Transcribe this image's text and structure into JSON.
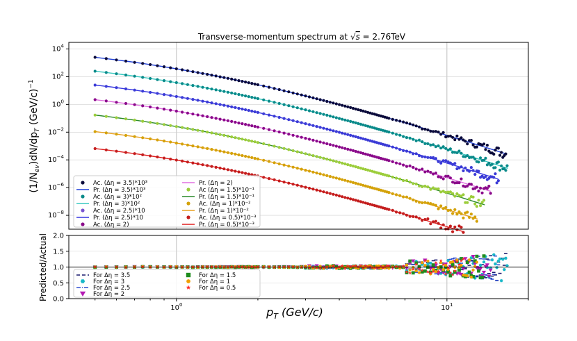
{
  "chart_data": {
    "type": "scatter",
    "title": "Transverse-momentum spectrum at √s = 2.76TeV",
    "title_main": "Transverse-momentum spectrum at ",
    "title_sqrt": "√",
    "title_s": "s",
    "title_rest": " =  2.76TeV",
    "xlabel": "p_T (GeV/c)",
    "xlabel_p": "p",
    "xlabel_sub": "T",
    "xlabel_units": " (GeV/c)",
    "x_scale": "log",
    "xlim": [
      0.4,
      20
    ],
    "x_ticks": [
      {
        "base": "10",
        "exp": "0",
        "value": 1
      },
      {
        "base": "10",
        "exp": "1",
        "value": 10
      }
    ],
    "grid": true,
    "top_panel": {
      "ylabel": "(1/N_ev)dN/dp_T (GeV/c)^-1",
      "ylabel_a": "(1/N",
      "ylabel_a_sub": "ev",
      "ylabel_b": ")dN/dp",
      "ylabel_b_sub": "T",
      "ylabel_c": " (GeV/c)",
      "ylabel_c_sup": "−1",
      "y_scale": "log",
      "ylim": [
        1e-09,
        30000.0
      ],
      "y_ticks": [
        {
          "base": "10",
          "exp": "4",
          "value": 10000
        },
        {
          "base": "10",
          "exp": "2",
          "value": 100
        },
        {
          "base": "10",
          "exp": "0",
          "value": 1
        },
        {
          "base": "10",
          "exp": "−2",
          "value": 0.01
        },
        {
          "base": "10",
          "exp": "−4",
          "value": 0.0001
        },
        {
          "base": "10",
          "exp": "−6",
          "value": 1e-06
        },
        {
          "base": "10",
          "exp": "−8",
          "value": 1e-08
        }
      ],
      "legend_position": "lower-left",
      "series": [
        {
          "key": "35",
          "start": 2500,
          "color": "#0b0b3b",
          "xmax": 16.5,
          "data_label": "Ac. (Δη = 3.5)*10³",
          "fit_label": "Pr. (Δη = 3.5)*10³",
          "fit_color": "#1f3fd8"
        },
        {
          "key": "30",
          "start": 250,
          "color": "#0a8a8a",
          "xmax": 16.8,
          "data_label": "Ac. (Δη = 3)*10²",
          "fit_label": "Pr. (Δη = 3)*10²",
          "fit_color": "#38c8c0"
        },
        {
          "key": "25",
          "start": 25,
          "color": "#3b3bd6",
          "xmax": 15.5,
          "data_label": "Ac. (Δη = 2.5)*10",
          "fit_label": "Pr. (Δη = 2.5)*10",
          "fit_color": "#3636e0"
        },
        {
          "key": "20",
          "start": 2.2,
          "color": "#8a0a8a",
          "xmax": 14.5,
          "data_label": "Ac. (Δη = 2)",
          "fit_label": "Pr. (Δη = 2)",
          "fit_color": "#e070e0"
        },
        {
          "key": "15",
          "start": 0.17,
          "color": "#9ccd3b",
          "xmax": 13.8,
          "data_label": "Ac (Δη = 1.5)*10⁻¹",
          "fit_label": "Pr. (Δη = 1.5)*10⁻¹",
          "fit_color": "#2a8a2a"
        },
        {
          "key": "10",
          "start": 0.011,
          "color": "#d4a20a",
          "xmax": 13.0,
          "data_label": "Ac. (Δη = 1)*10⁻²",
          "fit_label": "Pr. (Δη = 1)*10⁻²",
          "fit_color": "#e8a020"
        },
        {
          "key": "05",
          "start": 0.00065,
          "color": "#c41e1e",
          "xmax": 11.5,
          "data_label": "Ac. (Δη = 0.5)*10⁻³",
          "fit_label": "Pr. (Δη = 0.5)*10⁻³",
          "fit_color": "#e02020"
        }
      ],
      "legend_left": [
        {
          "kind": "dot",
          "color": "#0b0b3b",
          "label": "Ac. (Δη = 3.5)*10³"
        },
        {
          "kind": "line",
          "color": "#1f3fd8",
          "label": "Pr. (Δη = 3.5)*10³"
        },
        {
          "kind": "dot",
          "color": "#0a8a8a",
          "label": "Ac. (Δη = 3)*10²"
        },
        {
          "kind": "line",
          "color": "#38c8c0",
          "label": "Pr. (Δη = 3)*10²"
        },
        {
          "kind": "dot",
          "color": "#7a55d0",
          "label": "Ac. (Δη = 2.5)*10"
        },
        {
          "kind": "line",
          "color": "#3636e0",
          "label": "Pr. (Δη = 2.5)*10"
        },
        {
          "kind": "dot",
          "color": "#8a0a8a",
          "label": "Ac. (Δη = 2)"
        }
      ],
      "legend_right": [
        {
          "kind": "line",
          "color": "#e070e0",
          "label": "Pr. (Δη = 2)"
        },
        {
          "kind": "dot",
          "color": "#9ccd3b",
          "label": "Ac (Δη = 1.5)*10⁻¹"
        },
        {
          "kind": "line",
          "color": "#2a8a2a",
          "label": "Pr. (Δη = 1.5)*10⁻¹"
        },
        {
          "kind": "dot",
          "color": "#d4a20a",
          "label": "Ac. (Δη = 1)*10⁻²"
        },
        {
          "kind": "line",
          "color": "#e8a020",
          "label": "Pr. (Δη = 1)*10⁻²"
        },
        {
          "kind": "dot",
          "color": "#c41e1e",
          "label": "Ac. (Δη = 0.5)*10⁻³"
        },
        {
          "kind": "line",
          "color": "#e02020",
          "label": "Pr. (Δη = 0.5)*10⁻³"
        }
      ]
    },
    "bottom_panel": {
      "ylabel": "Predicted/Actual",
      "ylim": [
        0.0,
        2.0
      ],
      "y_ticks": [
        "0.0",
        "0.5",
        "1.0",
        "1.5",
        "2.0"
      ],
      "reference_line": 1.0,
      "legend_position": "lower-left",
      "series": [
        {
          "key": "35",
          "color": "#1a1a6e",
          "marker": "dash"
        },
        {
          "key": "30",
          "color": "#18b8c8",
          "marker": "hexagon"
        },
        {
          "key": "25",
          "color": "#2f4fd0",
          "marker": "dashdot"
        },
        {
          "key": "20",
          "color": "#b41ab4",
          "marker": "triangle-down"
        },
        {
          "key": "15",
          "color": "#1e8c1e",
          "marker": "square"
        },
        {
          "key": "10",
          "color": "#f0a000",
          "marker": "circle"
        },
        {
          "key": "05",
          "color": "#ff2a2a",
          "marker": "star"
        }
      ],
      "legend_left": [
        {
          "kind": "dash",
          "color": "#1a1a6e",
          "label": "For Δη = 3.5"
        },
        {
          "kind": "hexagon",
          "color": "#18b8c8",
          "label": "For Δη = 3"
        },
        {
          "kind": "dashdot",
          "color": "#2f4fd0",
          "label": "For Δη = 2.5"
        },
        {
          "kind": "triangle-down",
          "color": "#b41ab4",
          "label": "For Δη = 2"
        }
      ],
      "legend_right": [
        {
          "kind": "square",
          "color": "#1e8c1e",
          "label": "For Δη = 1.5"
        },
        {
          "kind": "circle",
          "color": "#f0a000",
          "label": "For Δη = 1"
        },
        {
          "kind": "star",
          "color": "#ff2a2a",
          "label": "For Δη = 0.5"
        }
      ]
    }
  }
}
